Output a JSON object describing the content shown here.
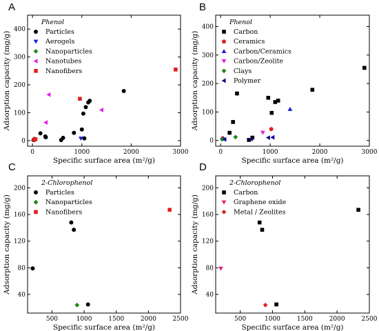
{
  "chart_data": [
    {
      "panel": "A",
      "type": "scatter",
      "title": "",
      "legend_title": "Phenol",
      "xlabel": "Specific surface area (m²/g)",
      "ylabel": "Adsorption capacity (mg/g)",
      "xlim": [
        -100,
        3000
      ],
      "ylim": [
        -20,
        450
      ],
      "xticks": [
        0,
        1000,
        2000,
        3000
      ],
      "yticks": [
        0,
        100,
        200,
        300,
        400
      ],
      "legend_position": "top-left",
      "series": [
        {
          "name": "Particles",
          "marker": "circle",
          "color": "#000000",
          "points": [
            [
              20,
              2
            ],
            [
              40,
              6
            ],
            [
              50,
              4
            ],
            [
              160,
              26
            ],
            [
              260,
              15
            ],
            [
              270,
              12
            ],
            [
              580,
              2
            ],
            [
              620,
              10
            ],
            [
              840,
              28
            ],
            [
              1000,
              40
            ],
            [
              1030,
              97
            ],
            [
              1050,
              8
            ],
            [
              1080,
              120
            ],
            [
              1130,
              137
            ],
            [
              1160,
              143
            ],
            [
              1850,
              178
            ]
          ]
        },
        {
          "name": "Aerogels",
          "marker": "triangle-down",
          "color": "#1f1fdc",
          "points": [
            [
              980,
              8
            ]
          ]
        },
        {
          "name": "Nanoparticles",
          "marker": "diamond",
          "color": "#1a8a1a",
          "points": [
            [
              40,
              2
            ]
          ]
        },
        {
          "name": "Nanotubes",
          "marker": "triangle-left",
          "color": "#e020e0",
          "points": [
            [
              270,
              65
            ],
            [
              330,
              165
            ],
            [
              1400,
              110
            ]
          ]
        },
        {
          "name": "Nanofibers",
          "marker": "square",
          "color": "#e02020",
          "points": [
            [
              30,
              3
            ],
            [
              60,
              5
            ],
            [
              960,
              150
            ],
            [
              2900,
              255
            ]
          ]
        }
      ]
    },
    {
      "panel": "B",
      "type": "scatter",
      "title": "",
      "legend_title": "Phenol",
      "xlabel": "Specific surface area (m²/g)",
      "ylabel": "Adsorption capacity (mg/g)",
      "xlim": [
        -100,
        3000
      ],
      "ylim": [
        -20,
        440
      ],
      "xticks": [
        0,
        1000,
        2000,
        3000
      ],
      "yticks": [
        0,
        100,
        200,
        300,
        400
      ],
      "legend_position": "top-left",
      "series": [
        {
          "name": "Carbon",
          "marker": "square",
          "color": "#000000",
          "points": [
            [
              180,
              27
            ],
            [
              250,
              65
            ],
            [
              330,
              165
            ],
            [
              570,
              2
            ],
            [
              640,
              10
            ],
            [
              960,
              150
            ],
            [
              1030,
              97
            ],
            [
              1100,
              135
            ],
            [
              1160,
              140
            ],
            [
              1850,
              178
            ],
            [
              2900,
              255
            ]
          ]
        },
        {
          "name": "Ceramics",
          "marker": "circle",
          "color": "#e02020",
          "points": [
            [
              40,
              8
            ],
            [
              1020,
              40
            ]
          ]
        },
        {
          "name": "Carbon/Ceramics",
          "marker": "triangle-up",
          "color": "#1f1fdc",
          "points": [
            [
              60,
              6
            ],
            [
              1400,
              110
            ]
          ]
        },
        {
          "name": "Carbon/Zeolite",
          "marker": "triangle-down",
          "color": "#e020e0",
          "points": [
            [
              850,
              28
            ]
          ]
        },
        {
          "name": "Clays",
          "marker": "diamond",
          "color": "#1a8a1a",
          "points": [
            [
              30,
              4
            ],
            [
              300,
              12
            ]
          ]
        },
        {
          "name": "Polymer",
          "marker": "triangle-left",
          "color": "#0a0a8c",
          "points": [
            [
              80,
              4
            ],
            [
              610,
              5
            ],
            [
              960,
              10
            ],
            [
              1050,
              11
            ]
          ]
        }
      ]
    },
    {
      "panel": "C",
      "type": "scatter",
      "title": "",
      "legend_title": "2-Chlorophenol",
      "xlabel": "Specific surface area (m²/g)",
      "ylabel": "Adsorption capacity (mg/g)",
      "xlim": [
        120,
        2500
      ],
      "ylim": [
        12,
        218
      ],
      "xticks": [
        500,
        1000,
        1500,
        2000,
        2500
      ],
      "yticks": [
        40,
        80,
        120,
        160,
        200
      ],
      "legend_position": "top-left",
      "series": [
        {
          "name": "Particles",
          "marker": "circle",
          "color": "#000000",
          "points": [
            [
              200,
              79
            ],
            [
              800,
              148
            ],
            [
              840,
              137
            ],
            [
              1060,
              25
            ]
          ]
        },
        {
          "name": "Nanoparticles",
          "marker": "diamond",
          "color": "#1a8a1a",
          "points": [
            [
              890,
              24
            ]
          ]
        },
        {
          "name": "Nanofibers",
          "marker": "square",
          "color": "#e02020",
          "points": [
            [
              2330,
              167
            ]
          ]
        }
      ]
    },
    {
      "panel": "D",
      "type": "scatter",
      "title": "",
      "legend_title": "2-Chlorophenol",
      "xlabel": "Specific surface area (m²/g)",
      "ylabel": "Adsorption capacity (mg/g)",
      "xlim": [
        120,
        2500
      ],
      "ylim": [
        12,
        218
      ],
      "xticks": [
        500,
        1000,
        1500,
        2000,
        2500
      ],
      "yticks": [
        40,
        80,
        120,
        160,
        200
      ],
      "legend_position": "top-left",
      "series": [
        {
          "name": "Carbon",
          "marker": "square",
          "color": "#000000",
          "points": [
            [
              800,
              148
            ],
            [
              840,
              137
            ],
            [
              1060,
              25
            ],
            [
              2330,
              167
            ]
          ]
        },
        {
          "name": "Graphene oxide",
          "marker": "triangle-down",
          "color": "#e0207a",
          "points": [
            [
              200,
              79
            ]
          ]
        },
        {
          "name": "Metal / Zeolites",
          "marker": "diamond",
          "color": "#e02020",
          "points": [
            [
              890,
              24
            ]
          ]
        }
      ]
    }
  ]
}
